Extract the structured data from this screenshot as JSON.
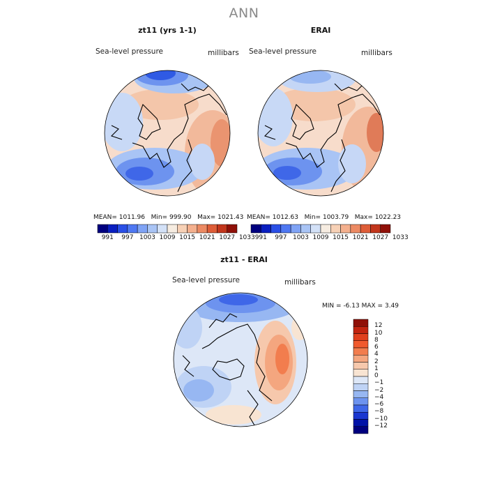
{
  "title": "ANN",
  "panels": [
    {
      "title": "zt11 (yrs 1-1)",
      "variable": "Sea-level pressure",
      "units": "millibars",
      "mean_label": "MEAN=",
      "mean": "1011.96",
      "min_label": "Min=",
      "min": "999.90",
      "max_label": "Max=",
      "max": "1021.43"
    },
    {
      "title": "ERAI",
      "variable": "Sea-level pressure",
      "units": "millibars",
      "mean_label": "MEAN=",
      "mean": "1012.63",
      "min_label": "Min=",
      "min": "1003.79",
      "max_label": "Max=",
      "max": "1022.23"
    }
  ],
  "diff_panel": {
    "title": "zt11 - ERAI",
    "variable": "Sea-level pressure",
    "units": "millibars",
    "min_label": "MIN =",
    "min": "-6.13",
    "max_label": "MAX =",
    "max": "3.49"
  },
  "colorbar_top": {
    "ticks": [
      "991",
      "997",
      "1003",
      "1009",
      "1015",
      "1021",
      "1027",
      "1033"
    ],
    "colors": [
      "#00007f",
      "#0a1fc0",
      "#2a4fe6",
      "#4f78f2",
      "#7fa3f5",
      "#a9c4f5",
      "#d3e1f7",
      "#f6ece1",
      "#f7d1b6",
      "#f4b08e",
      "#ec8a63",
      "#de5d38",
      "#c2361c",
      "#8f1008"
    ]
  },
  "colorbar_diff": {
    "labels": [
      "12",
      "10",
      "8",
      "6",
      "4",
      "2",
      "1",
      "0",
      "−1",
      "−2",
      "−4",
      "−6",
      "−8",
      "−10",
      "−12"
    ],
    "colors": [
      "#8f1008",
      "#c22410",
      "#e0401e",
      "#f05a2e",
      "#f27d4e",
      "#f4a67f",
      "#f6c8ac",
      "#f8e4d2",
      "#dde7f7",
      "#bfd3f5",
      "#97b7f2",
      "#6d93ef",
      "#3f67e8",
      "#1a36d0",
      "#0012a8",
      "#00007f"
    ]
  },
  "chart_data": [
    {
      "type": "heatmap",
      "title": "zt11 (yrs 1-1)",
      "subtitle": "Sea-level pressure",
      "units": "millibars",
      "levels": [
        991,
        994,
        997,
        1000,
        1003,
        1006,
        1009,
        1012,
        1015,
        1018,
        1021,
        1024,
        1027,
        1030,
        1033
      ],
      "stats": {
        "mean": 1011.96,
        "min": 999.9,
        "max": 1021.43
      }
    },
    {
      "type": "heatmap",
      "title": "ERAI",
      "subtitle": "Sea-level pressure",
      "units": "millibars",
      "levels": [
        991,
        994,
        997,
        1000,
        1003,
        1006,
        1009,
        1012,
        1015,
        1018,
        1021,
        1024,
        1027,
        1030,
        1033
      ],
      "stats": {
        "mean": 1012.63,
        "min": 1003.79,
        "max": 1022.23
      }
    },
    {
      "type": "heatmap",
      "title": "zt11 - ERAI",
      "subtitle": "Sea-level pressure",
      "units": "millibars",
      "levels": [
        -12,
        -10,
        -8,
        -6,
        -4,
        -2,
        -1,
        0,
        1,
        2,
        4,
        6,
        8,
        10,
        12
      ],
      "stats": {
        "min": -6.13,
        "max": 3.49
      }
    }
  ]
}
